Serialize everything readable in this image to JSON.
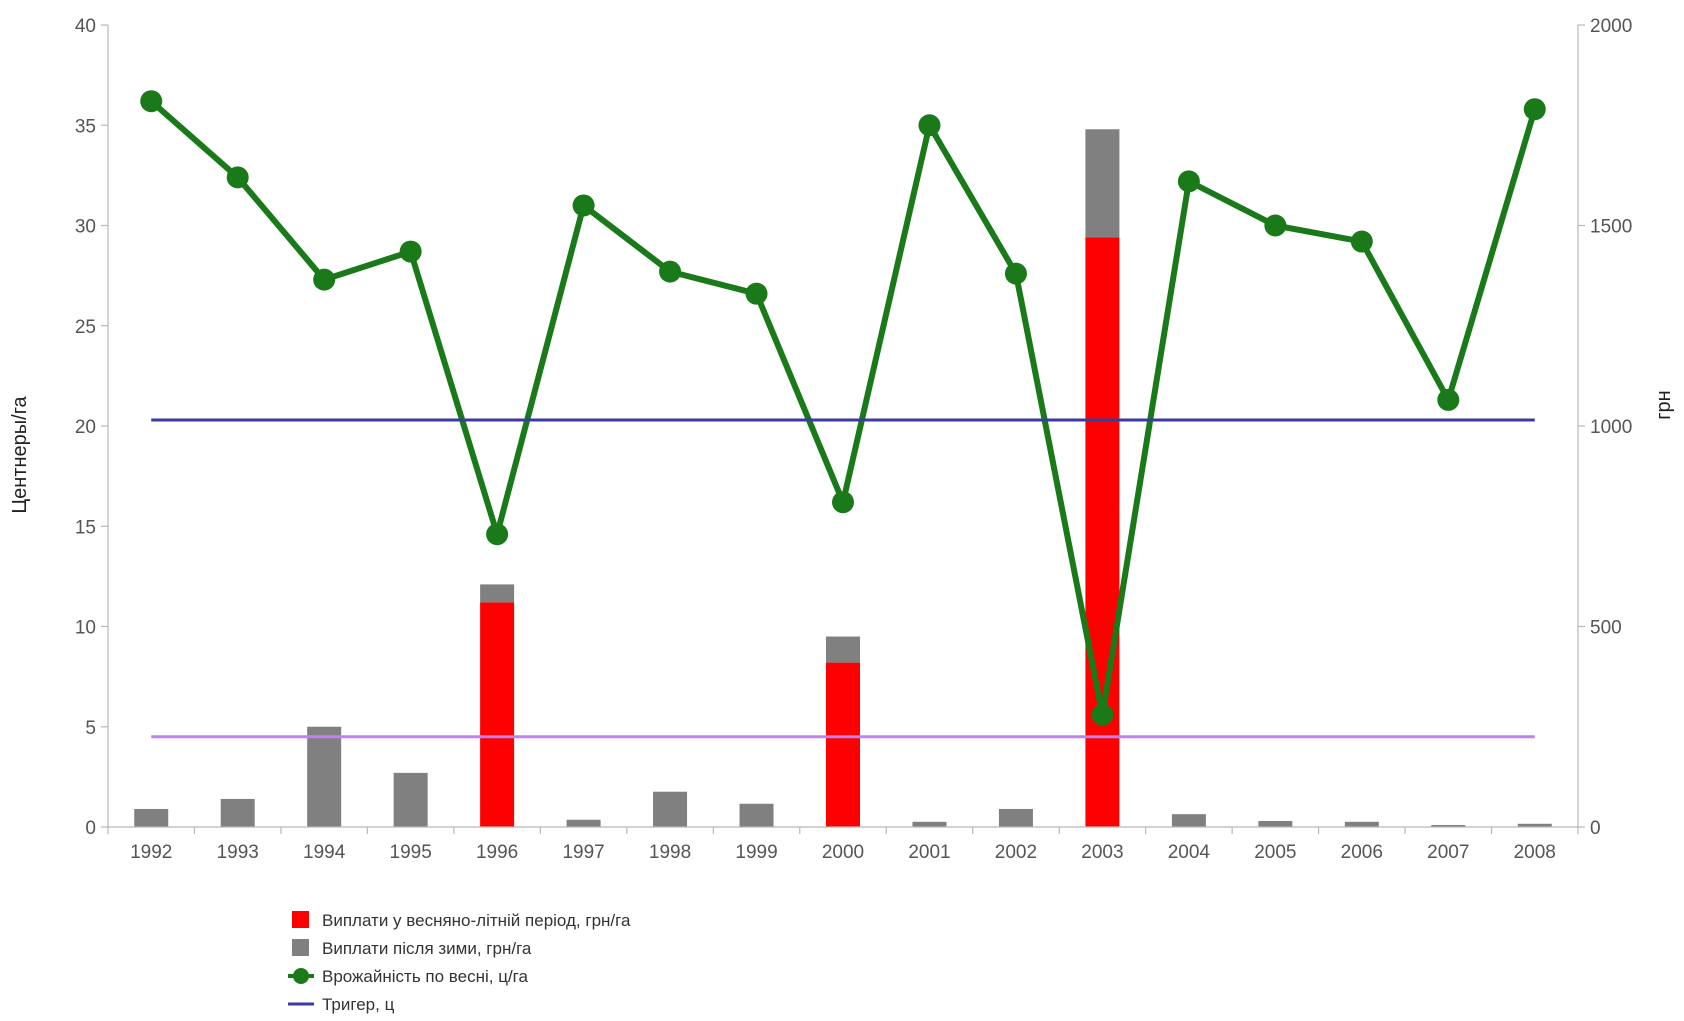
{
  "chart_data": {
    "type": "bar",
    "x": [
      "1992",
      "1993",
      "1994",
      "1995",
      "1996",
      "1997",
      "1998",
      "1999",
      "2000",
      "2001",
      "2002",
      "2003",
      "2004",
      "2005",
      "2006",
      "2007",
      "2008"
    ],
    "left_axis": {
      "label": "Центнеры/га",
      "ylim": [
        0,
        40
      ],
      "ticks": [
        "0",
        "5",
        "10",
        "15",
        "20",
        "25",
        "30",
        "35",
        "40"
      ]
    },
    "right_axis": {
      "label": "грн",
      "ylim": [
        0,
        2000
      ],
      "ticks": [
        "0",
        "500",
        "1000",
        "1500",
        "2000"
      ]
    },
    "series": [
      {
        "name": "Виплати у весняно-літній період, грн/га",
        "type": "bar",
        "axis": "right",
        "stack": "payments",
        "color": "#ff0000",
        "values": [
          0,
          0,
          0,
          0,
          560,
          0,
          0,
          0,
          410,
          0,
          0,
          1470,
          0,
          0,
          0,
          0,
          0
        ]
      },
      {
        "name": "Виплати після зими, грн/га",
        "type": "bar",
        "axis": "right",
        "stack": "payments",
        "color": "#808080",
        "values": [
          45,
          70,
          250,
          135,
          45,
          18,
          88,
          58,
          65,
          13,
          45,
          270,
          32,
          15,
          13,
          5,
          8
        ]
      },
      {
        "name": "Врожайність по весні, ц/га",
        "type": "line",
        "axis": "left",
        "marker": "circle",
        "color": "#1a7a1a",
        "values": [
          36.2,
          32.4,
          27.3,
          28.7,
          14.6,
          31.0,
          27.7,
          26.6,
          16.2,
          35.0,
          27.6,
          5.6,
          32.2,
          30.0,
          29.2,
          21.3,
          35.8
        ]
      },
      {
        "name": "Тригер, ц",
        "type": "line",
        "axis": "left",
        "color": "#3a3aa0",
        "values": [
          20.3,
          20.3,
          20.3,
          20.3,
          20.3,
          20.3,
          20.3,
          20.3,
          20.3,
          20.3,
          20.3,
          20.3,
          20.3,
          20.3,
          20.3,
          20.3,
          20.3
        ]
      },
      {
        "type": "line",
        "axis": "left",
        "color": "#c080f0",
        "values": [
          4.5,
          4.5,
          4.5,
          4.5,
          4.5,
          4.5,
          4.5,
          4.5,
          4.5,
          4.5,
          4.5,
          4.5,
          4.5,
          4.5,
          4.5,
          4.5,
          4.5
        ]
      }
    ],
    "legend": {
      "placement": "bottom-left",
      "visible_entries": [
        0,
        1,
        2,
        3
      ]
    }
  }
}
